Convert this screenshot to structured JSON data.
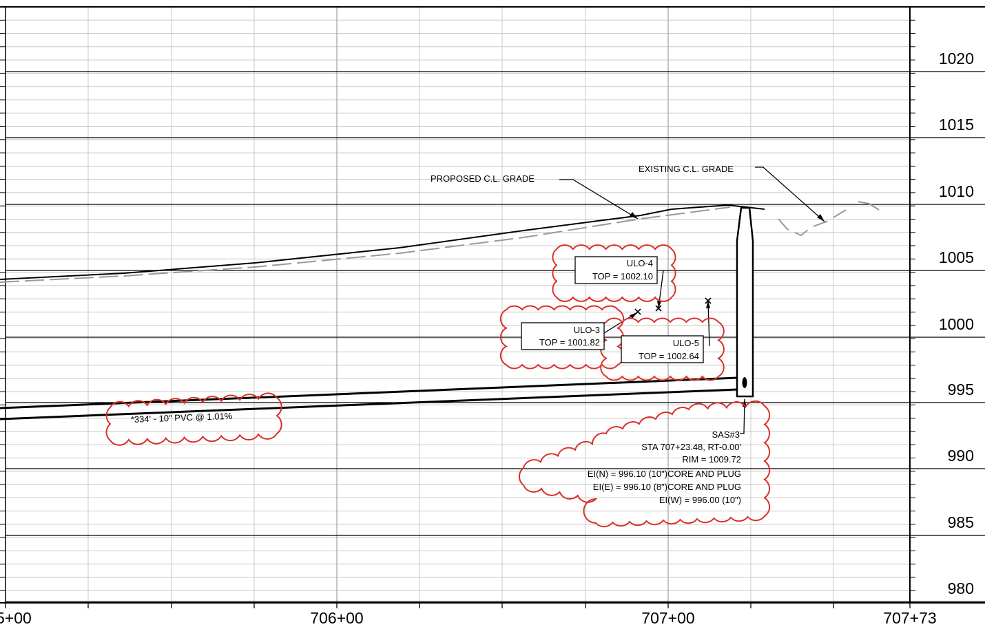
{
  "profile": {
    "elevation_labels": [
      "1020",
      "1015",
      "1010",
      "1005",
      "1000",
      "995",
      "990",
      "985",
      "980"
    ],
    "station_labels": [
      "5+00",
      "706+00",
      "707+00",
      "707+73"
    ]
  },
  "callouts": {
    "proposed_grade": "PROPOSED C.L. GRADE",
    "existing_grade": "EXISTING C.L. GRADE",
    "pipe_note": "*334' - 10\" PVC @ 1.01%",
    "ulo3": {
      "name": "ULO-3",
      "top": "TOP = 1001.82"
    },
    "ulo4": {
      "name": "ULO-4",
      "top": "TOP = 1002.10"
    },
    "ulo5": {
      "name": "ULO-5",
      "top": "TOP = 1002.64"
    },
    "manhole": {
      "name": "SAS#3",
      "station": "STA 707+23.48, RT-0.00'",
      "rim": "RIM = 1009.72",
      "ei_n": "EI(N) = 996.10 (10\")CORE AND PLUG",
      "ei_e": "EI(E) = 996.10 (8\")CORE AND PLUG",
      "ei_w": "EI(W) = 996.00 (10\")"
    }
  },
  "colors": {
    "revision_cloud": "#d9302a",
    "grid": "#c8c8c8",
    "existing_grade": "#999999"
  }
}
